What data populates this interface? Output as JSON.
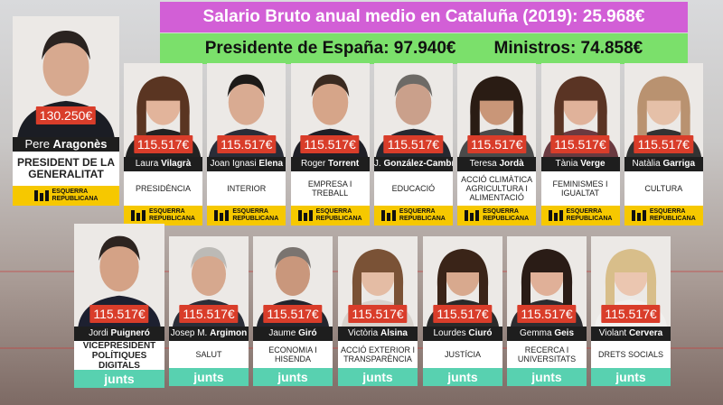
{
  "banner": {
    "salary_line": "Salario Bruto anual medio en Cataluña (2019): 25.968€",
    "president_spain": "Presidente de España: 97.940€",
    "ministers": "Ministros: 74.858€"
  },
  "parties": {
    "erc_line1": "ESQUERRA",
    "erc_line2": "REPUBLICANA",
    "junts": "junts"
  },
  "president": {
    "salary": "130.250€",
    "first": "Pere",
    "last": "Aragonès",
    "role": "PRESIDENT DE LA GENERALITAT"
  },
  "row1": [
    {
      "salary": "115.517€",
      "first": "Laura",
      "last": "Vilagrà",
      "role": "PRESIDÈNCIA"
    },
    {
      "salary": "115.517€",
      "first": "Joan Ignasi",
      "last": "Elena",
      "role": "INTERIOR"
    },
    {
      "salary": "115.517€",
      "first": "Roger",
      "last": "Torrent",
      "role": "EMPRESA I TREBALL"
    },
    {
      "salary": "115.517€",
      "first": "J.",
      "last": "González-Cambray",
      "role": "EDUCACIÓ"
    },
    {
      "salary": "115.517€",
      "first": "Teresa",
      "last": "Jordà",
      "role": "ACCIÓ CLIMÀTICA AGRICULTURA I ALIMENTACIÓ"
    },
    {
      "salary": "115.517€",
      "first": "Tània",
      "last": "Verge",
      "role": "FEMINISMES I IGUALTAT"
    },
    {
      "salary": "115.517€",
      "first": "Natàlia",
      "last": "Garriga",
      "role": "CULTURA"
    }
  ],
  "row2": [
    {
      "salary": "115.517€",
      "first": "Jordi",
      "last": "Puigneró",
      "role": "VICEPRESIDENT POLÍTIQUES DIGITALS"
    },
    {
      "salary": "115.517€",
      "first": "Josep M.",
      "last": "Argimon",
      "role": "SALUT"
    },
    {
      "salary": "115.517€",
      "first": "Jaume",
      "last": "Giró",
      "role": "ECONOMIA I HISENDA"
    },
    {
      "salary": "115.517€",
      "first": "Victòria",
      "last": "Alsina",
      "role": "ACCIÓ EXTERIOR I TRANSPARÈNCIA"
    },
    {
      "salary": "115.517€",
      "first": "Lourdes",
      "last": "Ciuró",
      "role": "JUSTÍCIA"
    },
    {
      "salary": "115.517€",
      "first": "Gemma",
      "last": "Geis",
      "role": "RECERCA I UNIVERSITATS"
    },
    {
      "salary": "115.517€",
      "first": "Violant",
      "last": "Cervera",
      "role": "DRETS SOCIALS"
    }
  ],
  "colors": {
    "banner_pink": "#d25fd6",
    "banner_green": "#7be06b",
    "salary_red": "#d93d2a",
    "erc_yellow": "#f6c800",
    "junts_teal": "#58d1b0"
  }
}
